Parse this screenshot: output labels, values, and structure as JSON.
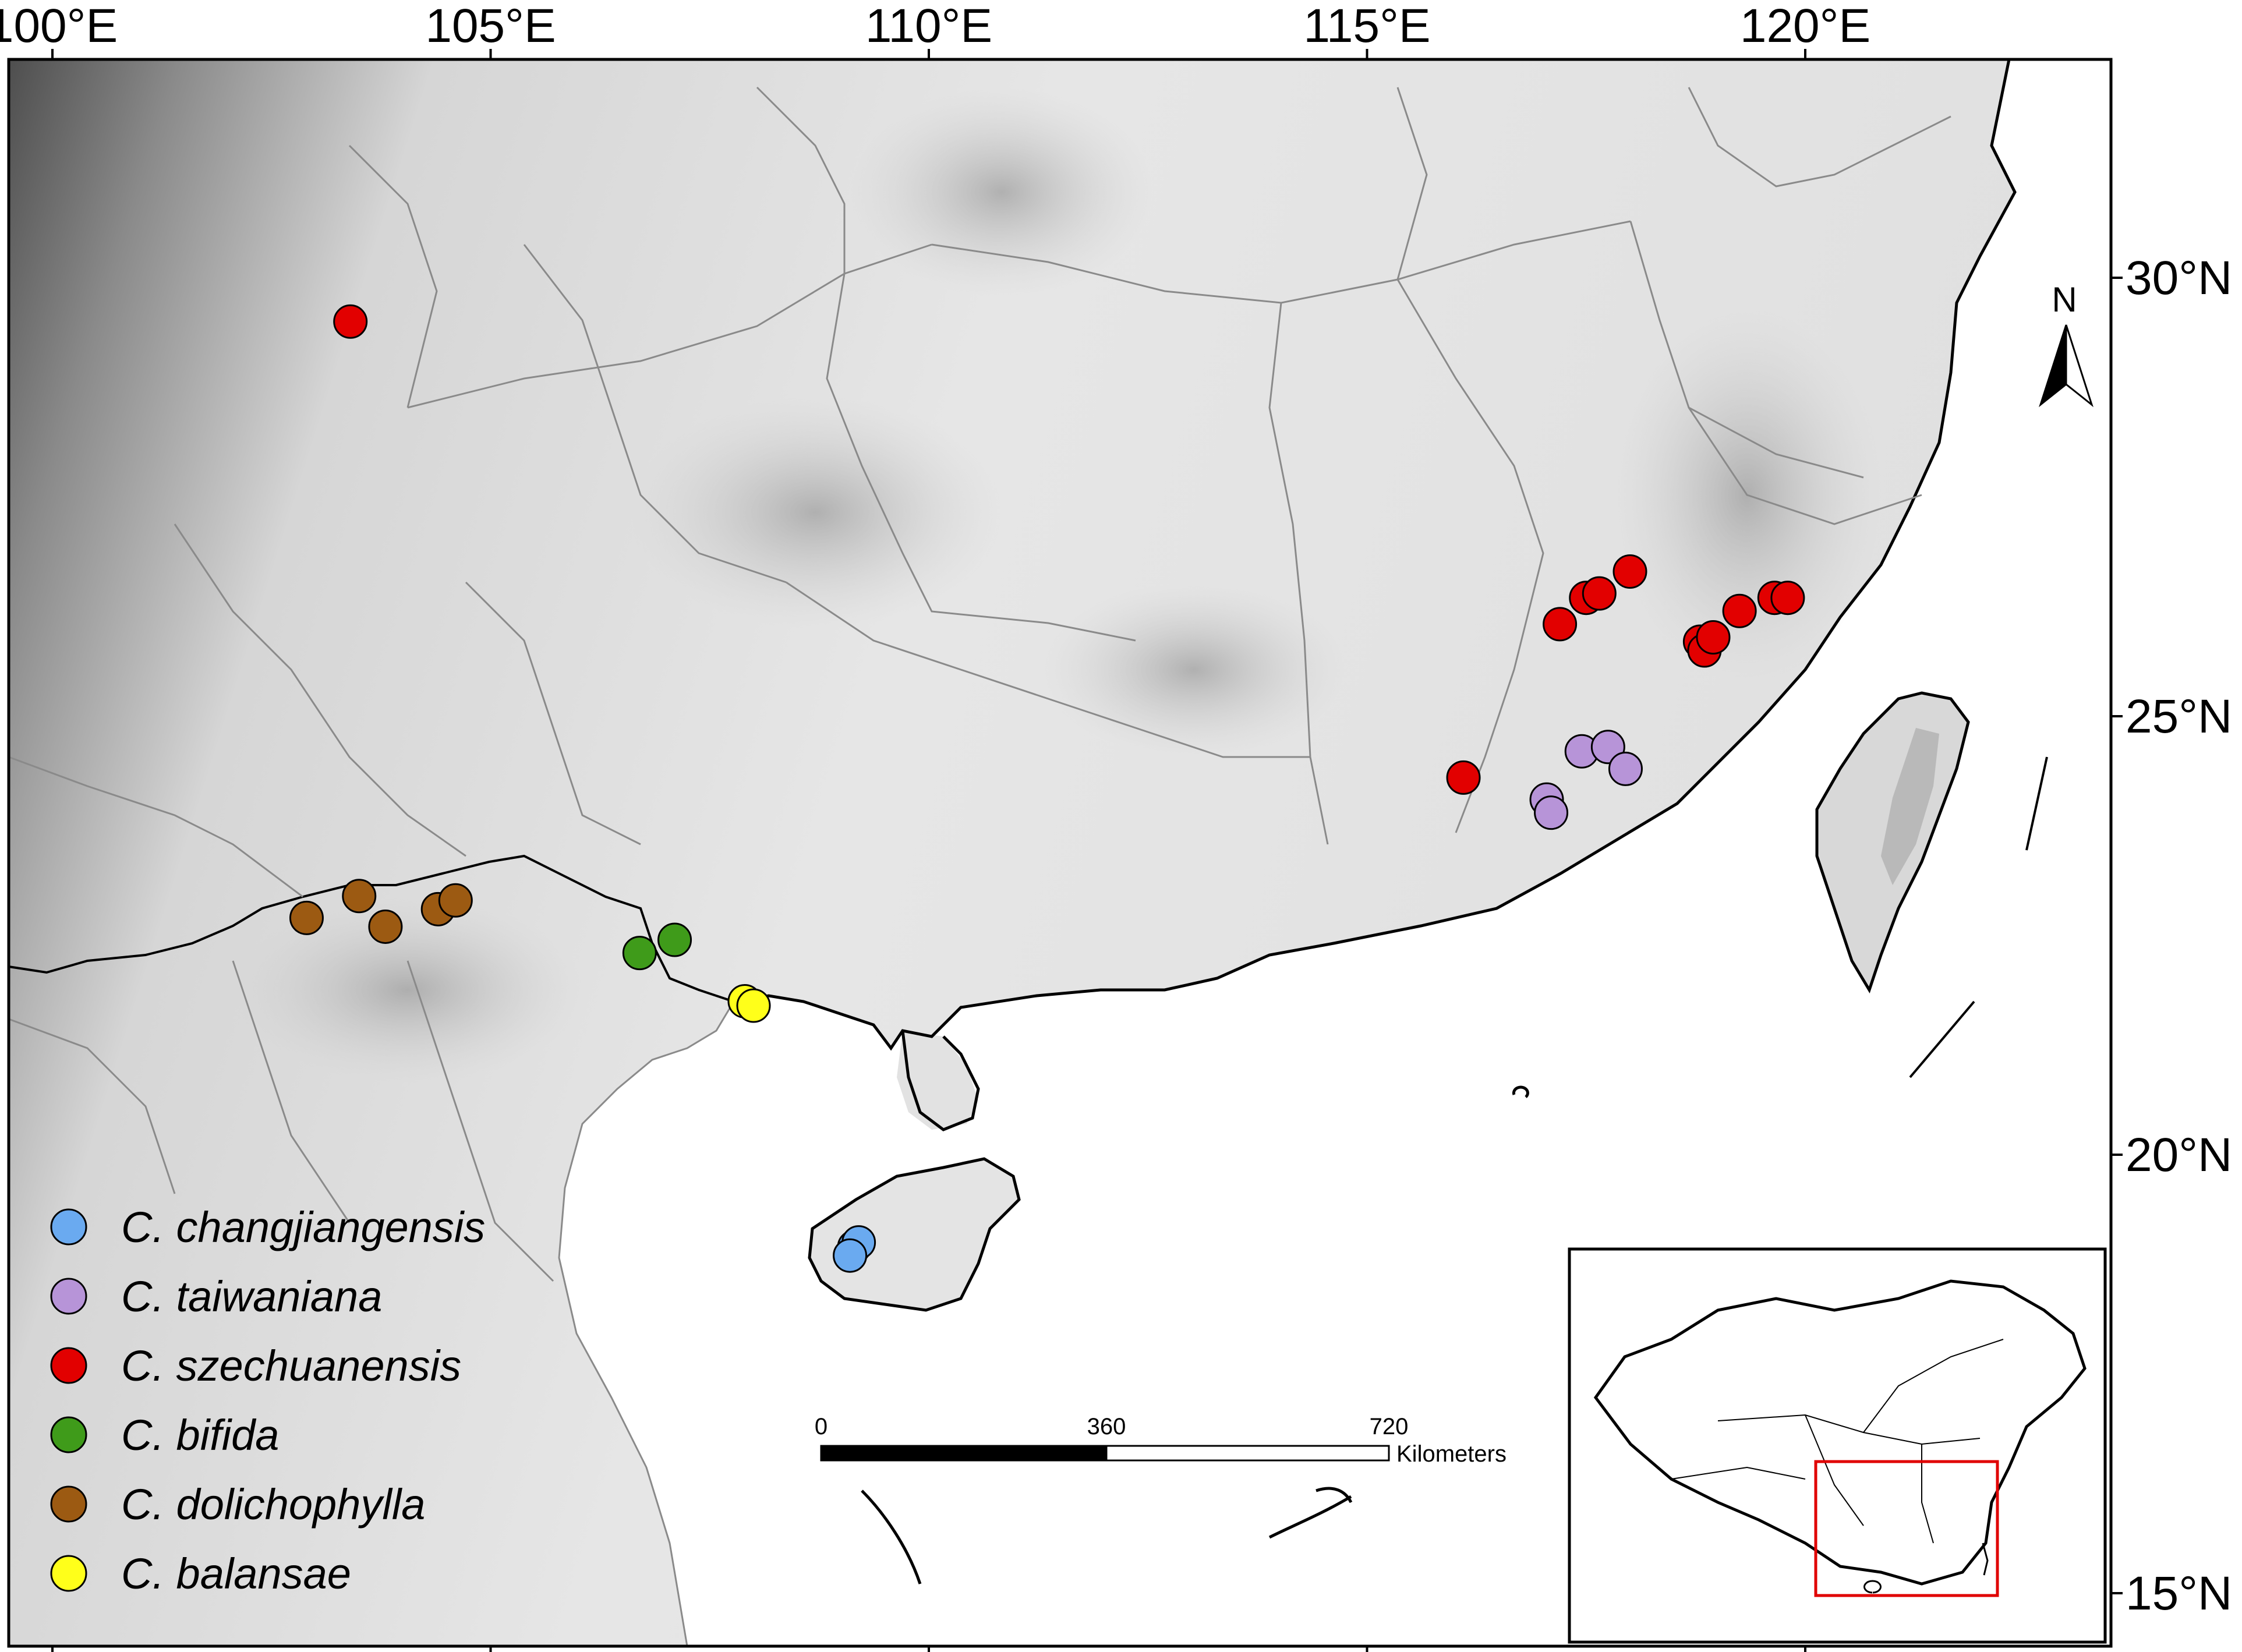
{
  "map": {
    "x_ticks": [
      {
        "lon": 100,
        "label": "100°E"
      },
      {
        "lon": 105,
        "label": "105°E"
      },
      {
        "lon": 110,
        "label": "110°E"
      },
      {
        "lon": 115,
        "label": "115°E"
      },
      {
        "lon": 120,
        "label": "120°E"
      }
    ],
    "y_ticks": [
      {
        "lat": 30,
        "label": "30°N"
      },
      {
        "lat": 25,
        "label": "25°N"
      },
      {
        "lat": 20,
        "label": "20°N"
      },
      {
        "lat": 15,
        "label": "15°N"
      }
    ],
    "north_label": "N",
    "scale_bar": {
      "labels": [
        "0",
        "360",
        "720"
      ],
      "unit": "Kilometers"
    },
    "colors": {
      "land": "#e6e6e6",
      "highland": "#5a5a5a",
      "sea": "#ffffff",
      "inset_highlight": "#e00000"
    }
  },
  "legend": [
    {
      "key": "changjiangensis",
      "label": "C. changjiangensis",
      "color": "#6aaaf0"
    },
    {
      "key": "taiwaniana",
      "label": "C. taiwaniana",
      "color": "#b794d8"
    },
    {
      "key": "szechuanensis",
      "label": "C. szechuanensis",
      "color": "#e20000"
    },
    {
      "key": "bifida",
      "label": "C. bifida",
      "color": "#3f9b1a"
    },
    {
      "key": "dolichophylla",
      "label": "C. dolichophylla",
      "color": "#9c5a12"
    },
    {
      "key": "balansae",
      "label": "C. balansae",
      "color": "#ffff1a"
    }
  ],
  "occurrences": [
    {
      "species": "szechuanensis",
      "lon": 103.4,
      "lat": 29.5
    },
    {
      "species": "szechuanensis",
      "lon": 117.2,
      "lat": 26.05
    },
    {
      "species": "szechuanensis",
      "lon": 117.5,
      "lat": 26.35
    },
    {
      "species": "szechuanensis",
      "lon": 117.65,
      "lat": 26.4
    },
    {
      "species": "szechuanensis",
      "lon": 118.0,
      "lat": 26.65
    },
    {
      "species": "szechuanensis",
      "lon": 118.8,
      "lat": 25.85
    },
    {
      "species": "szechuanensis",
      "lon": 118.85,
      "lat": 25.75
    },
    {
      "species": "szechuanensis",
      "lon": 118.95,
      "lat": 25.9
    },
    {
      "species": "szechuanensis",
      "lon": 119.25,
      "lat": 26.2
    },
    {
      "species": "szechuanensis",
      "lon": 119.65,
      "lat": 26.35
    },
    {
      "species": "szechuanensis",
      "lon": 119.8,
      "lat": 26.35
    },
    {
      "species": "szechuanensis",
      "lon": 116.1,
      "lat": 24.3
    },
    {
      "species": "taiwaniana",
      "lon": 117.05,
      "lat": 24.05
    },
    {
      "species": "taiwaniana",
      "lon": 117.1,
      "lat": 23.9
    },
    {
      "species": "taiwaniana",
      "lon": 117.45,
      "lat": 24.6
    },
    {
      "species": "taiwaniana",
      "lon": 117.75,
      "lat": 24.65
    },
    {
      "species": "taiwaniana",
      "lon": 117.95,
      "lat": 24.4
    },
    {
      "species": "dolichophylla",
      "lon": 102.9,
      "lat": 22.7
    },
    {
      "species": "dolichophylla",
      "lon": 103.5,
      "lat": 22.95
    },
    {
      "species": "dolichophylla",
      "lon": 103.8,
      "lat": 22.6
    },
    {
      "species": "dolichophylla",
      "lon": 104.4,
      "lat": 22.8
    },
    {
      "species": "dolichophylla",
      "lon": 104.6,
      "lat": 22.9
    },
    {
      "species": "bifida",
      "lon": 106.7,
      "lat": 22.3
    },
    {
      "species": "bifida",
      "lon": 107.1,
      "lat": 22.45
    },
    {
      "species": "balansae",
      "lon": 107.9,
      "lat": 21.75
    },
    {
      "species": "balansae",
      "lon": 108.0,
      "lat": 21.7
    },
    {
      "species": "changjiangensis",
      "lon": 109.15,
      "lat": 18.95
    },
    {
      "species": "changjiangensis",
      "lon": 109.2,
      "lat": 19.0
    },
    {
      "species": "changjiangensis",
      "lon": 109.1,
      "lat": 18.85
    }
  ]
}
